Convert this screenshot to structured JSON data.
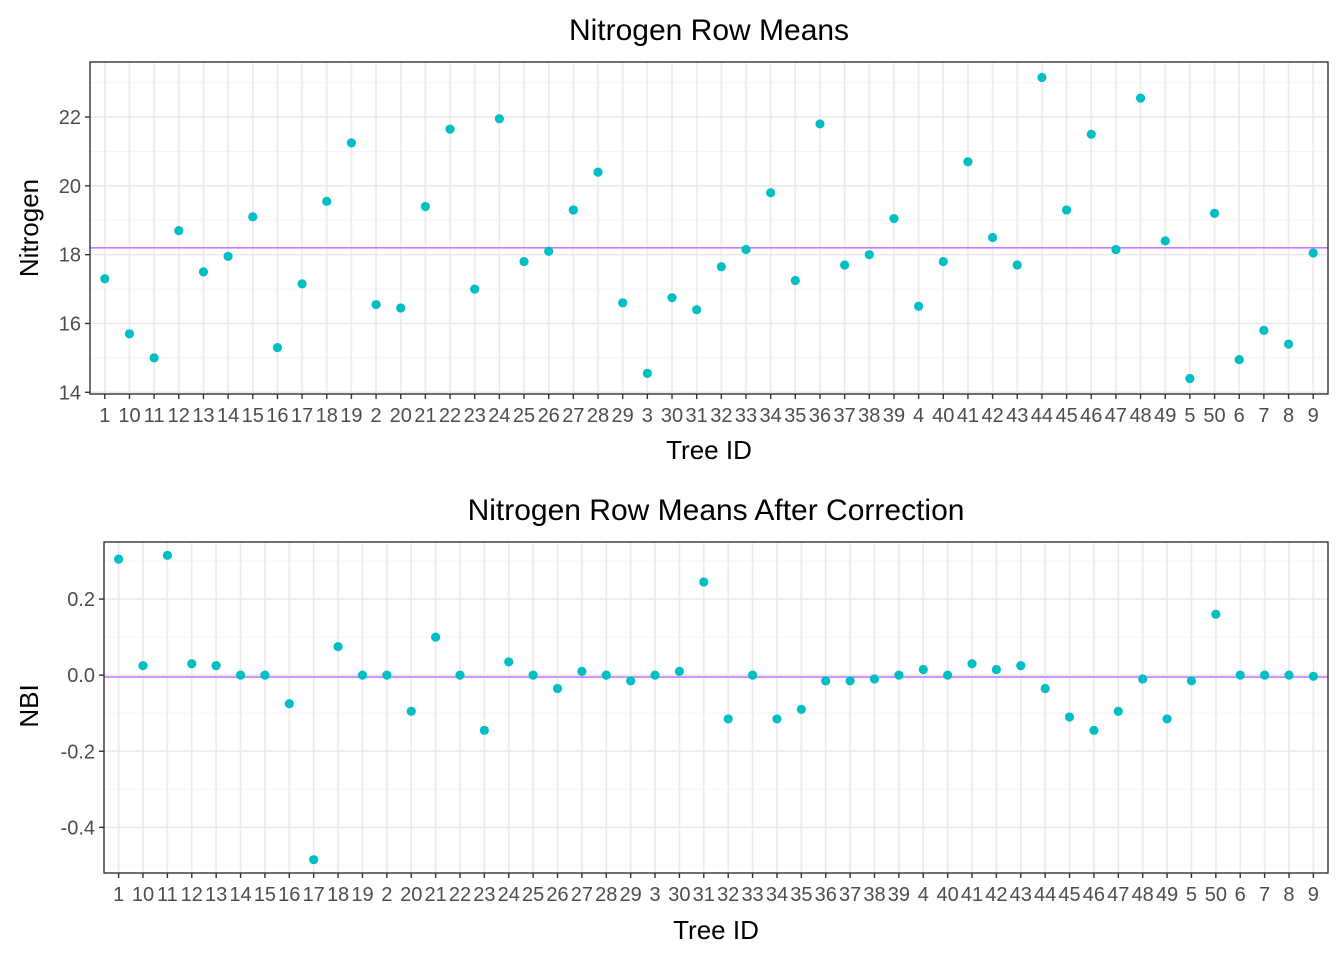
{
  "colors": {
    "point": "#00BFC4",
    "reference_line": "#C77CFF",
    "panel_border": "#333333",
    "grid_major": "#EBEBEB",
    "grid_minor": "#F5F5F5",
    "text": "#000000",
    "tick_text": "#4D4D4D"
  },
  "chart_data": [
    {
      "type": "scatter",
      "title": "Nitrogen Row Means",
      "xlabel": "Tree ID",
      "ylabel": "Nitrogen",
      "categories": [
        "1",
        "10",
        "11",
        "12",
        "13",
        "14",
        "15",
        "16",
        "17",
        "18",
        "19",
        "2",
        "20",
        "21",
        "22",
        "23",
        "24",
        "25",
        "26",
        "27",
        "28",
        "29",
        "3",
        "30",
        "31",
        "32",
        "33",
        "34",
        "35",
        "36",
        "37",
        "38",
        "39",
        "4",
        "40",
        "41",
        "42",
        "43",
        "44",
        "45",
        "46",
        "47",
        "48",
        "49",
        "5",
        "50",
        "6",
        "7",
        "8",
        "9"
      ],
      "values": [
        17.3,
        15.7,
        15.0,
        18.7,
        17.5,
        17.95,
        19.1,
        15.3,
        17.15,
        19.55,
        21.25,
        16.55,
        16.45,
        19.4,
        21.65,
        17.0,
        21.95,
        17.8,
        18.1,
        19.3,
        20.4,
        16.6,
        14.55,
        16.75,
        16.4,
        17.65,
        18.15,
        19.8,
        17.25,
        21.8,
        17.7,
        18.0,
        19.05,
        16.5,
        17.8,
        20.7,
        18.5,
        17.7,
        23.15,
        19.3,
        21.5,
        18.15,
        22.55,
        18.4,
        14.4,
        19.2,
        14.95,
        15.8,
        15.4,
        18.05
      ],
      "reference_line": 18.2,
      "ylim": [
        13.95,
        23.6
      ],
      "yticks": [
        14,
        16,
        18,
        20,
        22
      ],
      "ytick_labels": [
        "14",
        "16",
        "18",
        "20",
        "22"
      ],
      "grid": true
    },
    {
      "type": "scatter",
      "title": "Nitrogen Row Means After Correction",
      "xlabel": "Tree ID",
      "ylabel": "NBI",
      "categories": [
        "1",
        "10",
        "11",
        "12",
        "13",
        "14",
        "15",
        "16",
        "17",
        "18",
        "19",
        "2",
        "20",
        "21",
        "22",
        "23",
        "24",
        "25",
        "26",
        "27",
        "28",
        "29",
        "3",
        "30",
        "31",
        "32",
        "33",
        "34",
        "35",
        "36",
        "37",
        "38",
        "39",
        "4",
        "40",
        "41",
        "42",
        "43",
        "44",
        "45",
        "46",
        "47",
        "48",
        "49",
        "5",
        "50",
        "6",
        "7",
        "8",
        "9"
      ],
      "values": [
        0.305,
        0.025,
        0.315,
        0.03,
        0.025,
        0.0,
        0.0,
        -0.075,
        -0.485,
        0.075,
        0.0,
        0.0,
        -0.095,
        0.1,
        0.0,
        -0.145,
        0.035,
        0.0,
        -0.035,
        0.01,
        0.0,
        -0.015,
        0.0,
        0.01,
        0.245,
        -0.115,
        0.0,
        -0.115,
        -0.09,
        -0.015,
        -0.015,
        -0.01,
        0.0,
        0.015,
        0.0,
        0.03,
        0.015,
        0.025,
        -0.035,
        -0.11,
        -0.145,
        -0.095,
        -0.01,
        -0.115,
        -0.015,
        0.16,
        0.0,
        0.0,
        0.0,
        -0.003
      ],
      "reference_line": -0.005,
      "ylim": [
        -0.52,
        0.35
      ],
      "yticks": [
        -0.4,
        -0.2,
        0.0,
        0.2
      ],
      "ytick_labels": [
        "-0.4",
        "-0.2",
        "0.0",
        "0.2"
      ],
      "grid": true
    }
  ]
}
